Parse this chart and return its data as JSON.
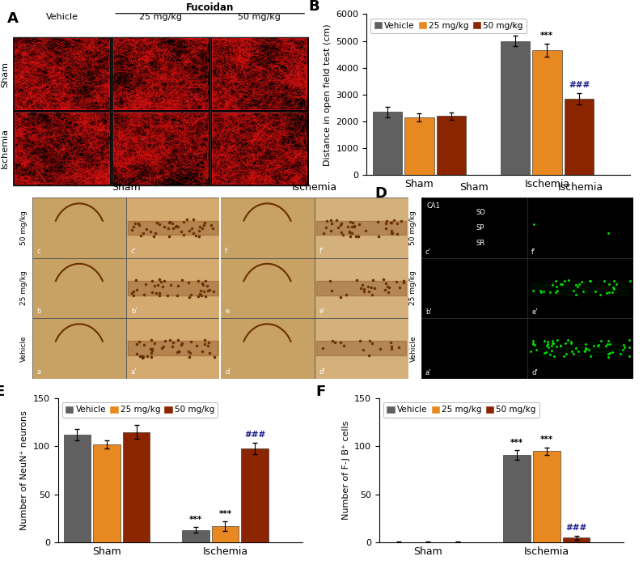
{
  "panel_B": {
    "ylabel": "Distance in open field test (cm)",
    "groups": [
      "Sham",
      "Ischemia"
    ],
    "series": [
      "Vehicle",
      "25 mg/kg",
      "50 mg/kg"
    ],
    "colors": [
      "#606060",
      "#E88820",
      "#8B2500"
    ],
    "values": {
      "Sham": [
        2350,
        2150,
        2200
      ],
      "Ischemia": [
        5000,
        4650,
        2850
      ]
    },
    "errors": {
      "Sham": [
        200,
        150,
        130
      ],
      "Ischemia": [
        200,
        250,
        200
      ]
    },
    "ylim": [
      0,
      6000
    ],
    "yticks": [
      0,
      1000,
      2000,
      3000,
      4000,
      5000,
      6000
    ],
    "annot_vehicle_isch": "***",
    "annot_25_isch": "***",
    "annot_50_isch": "###"
  },
  "panel_E": {
    "ylabel": "Number of NeuN⁺ neurons",
    "groups": [
      "Sham",
      "Ischemia"
    ],
    "series": [
      "Vehicle",
      "25 mg/kg",
      "50 mg/kg"
    ],
    "colors": [
      "#606060",
      "#E88820",
      "#8B2500"
    ],
    "values": {
      "Sham": [
        112,
        102,
        115
      ],
      "Ischemia": [
        13,
        17,
        98
      ]
    },
    "errors": {
      "Sham": [
        6,
        4,
        7
      ],
      "Ischemia": [
        3,
        5,
        6
      ]
    },
    "ylim": [
      0,
      150
    ],
    "yticks": [
      0,
      50,
      100,
      150
    ],
    "annot_vehicle_isch": "***",
    "annot_25_isch": "***",
    "annot_50_isch": "###"
  },
  "panel_F": {
    "ylabel": "Number of F-J B⁺ cells",
    "groups": [
      "Sham",
      "Ischemia"
    ],
    "series": [
      "Vehicle",
      "25 mg/kg",
      "50 mg/kg"
    ],
    "colors": [
      "#606060",
      "#E88820",
      "#8B2500"
    ],
    "values": {
      "Sham": [
        0.3,
        0.3,
        0.3
      ],
      "Ischemia": [
        91,
        95,
        5
      ]
    },
    "errors": {
      "Sham": [
        0.2,
        0.2,
        0.2
      ],
      "Ischemia": [
        5,
        4,
        2
      ]
    },
    "ylim": [
      0,
      150
    ],
    "yticks": [
      0,
      50,
      100,
      150
    ],
    "annot_vehicle_isch": "***",
    "annot_25_isch": "***",
    "annot_50_isch": "###"
  },
  "figure_label_fontsize": 13,
  "axis_label_fontsize": 8,
  "tick_fontsize": 8,
  "legend_fontsize": 7.5,
  "annot_fontsize": 8,
  "group_label_fontsize": 9
}
